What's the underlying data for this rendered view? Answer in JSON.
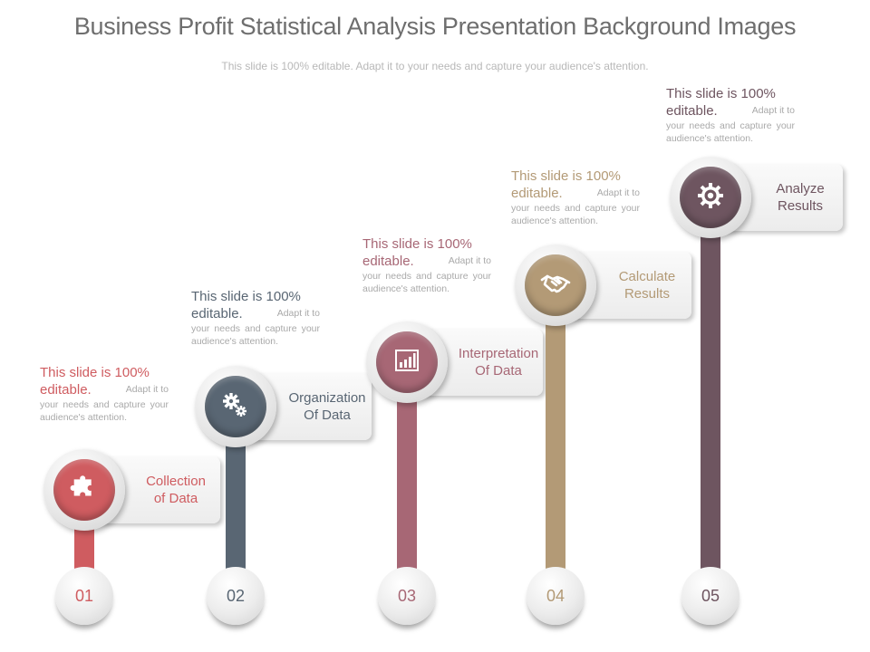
{
  "header": {
    "title": "Business Profit Statistical Analysis Presentation Background Images",
    "subtitle": "This slide is 100% editable. Adapt it to your needs and capture your audience's attention."
  },
  "steps": [
    {
      "number": "01",
      "label": "Collection\nof Data",
      "icon": "puzzle-icon",
      "color": "#cf5c60",
      "desc_line1": "This slide is 100%",
      "desc_line2": "editable.",
      "desc_line2_tail": "Adapt it to",
      "desc_body": "your needs and capture your audience's attention."
    },
    {
      "number": "02",
      "label": "Organization\nOf Data",
      "icon": "gears-icon",
      "color": "#596673",
      "desc_line1": "This slide is 100%",
      "desc_line2": "editable.",
      "desc_line2_tail": "Adapt it to",
      "desc_body": "your needs and capture your audience's attention."
    },
    {
      "number": "03",
      "label": "Interpretation\nOf Data",
      "icon": "bar-chart-icon",
      "color": "#a76775",
      "desc_line1": "This slide is 100%",
      "desc_line2": "editable.",
      "desc_line2_tail": "Adapt it to",
      "desc_body": "your needs and capture your audience's attention."
    },
    {
      "number": "04",
      "label": "Calculate\nResults",
      "icon": "handshake-icon",
      "color": "#b39a76",
      "desc_line1": "This slide is 100%",
      "desc_line2": "editable.",
      "desc_line2_tail": "Adapt it to",
      "desc_body": "your needs and capture your audience's attention."
    },
    {
      "number": "05",
      "label": "Analyze\nResults",
      "icon": "target-gear-icon",
      "color": "#6e5560",
      "desc_line1": "This slide is 100%",
      "desc_line2": "editable.",
      "desc_line2_tail": "Adapt it to",
      "desc_body": "your needs and capture your audience's attention."
    }
  ]
}
